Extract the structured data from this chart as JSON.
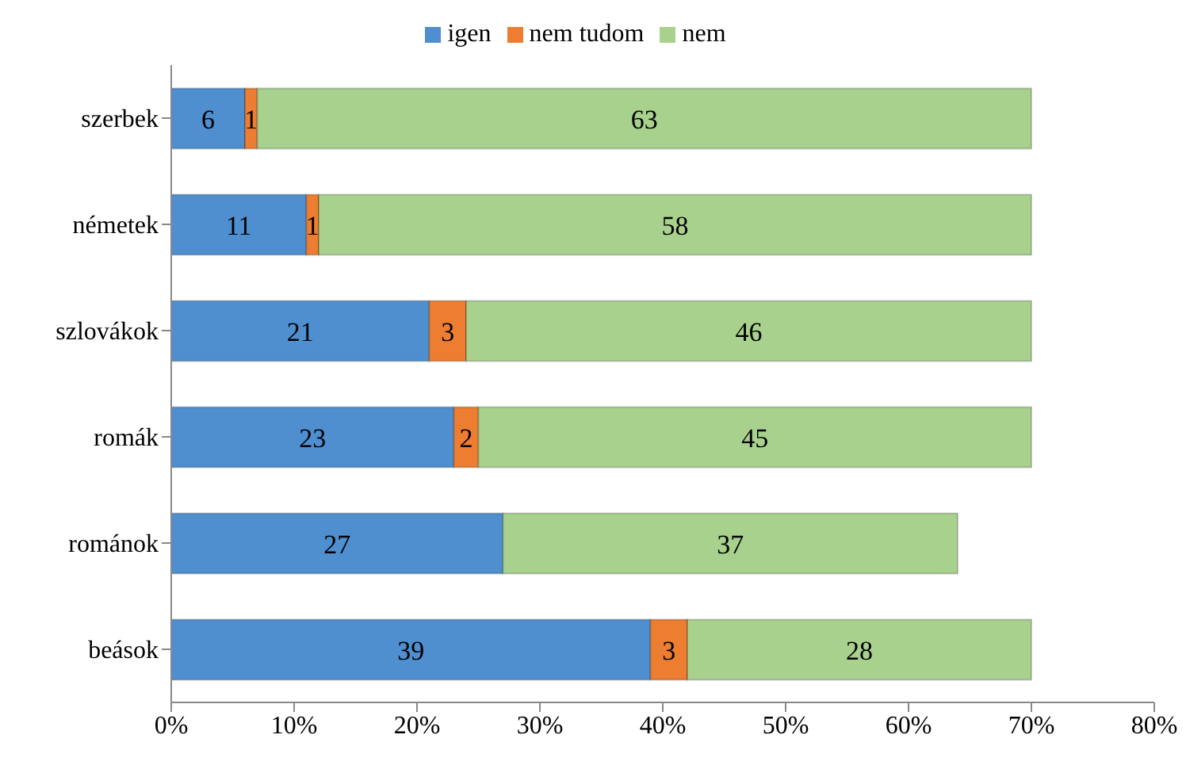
{
  "chart_data": {
    "type": "bar",
    "orientation": "horizontal",
    "stacked": true,
    "data_labels": true,
    "legend": "top",
    "grid": false,
    "categories": [
      "szerbek",
      "németek",
      "szlovákok",
      "romák",
      "románok",
      "beások"
    ],
    "series": [
      {
        "name": "igen",
        "color": "#4f8fd0",
        "values": [
          6,
          11,
          21,
          23,
          27,
          39
        ]
      },
      {
        "name": "nem tudom",
        "color": "#ed7d31",
        "values": [
          1,
          1,
          3,
          2,
          null,
          3
        ]
      },
      {
        "name": "nem",
        "color": "#a9d18e",
        "values": [
          63,
          58,
          46,
          45,
          37,
          28
        ]
      }
    ],
    "xlim": [
      0,
      80
    ],
    "xticks": [
      {
        "value": 0,
        "label": "0%"
      },
      {
        "value": 10,
        "label": "10%"
      },
      {
        "value": 20,
        "label": "20%"
      },
      {
        "value": 30,
        "label": "30%"
      },
      {
        "value": 40,
        "label": "40%"
      },
      {
        "value": 50,
        "label": "50%"
      },
      {
        "value": 60,
        "label": "60%"
      },
      {
        "value": 70,
        "label": "70%"
      },
      {
        "value": 80,
        "label": "80%"
      }
    ]
  }
}
